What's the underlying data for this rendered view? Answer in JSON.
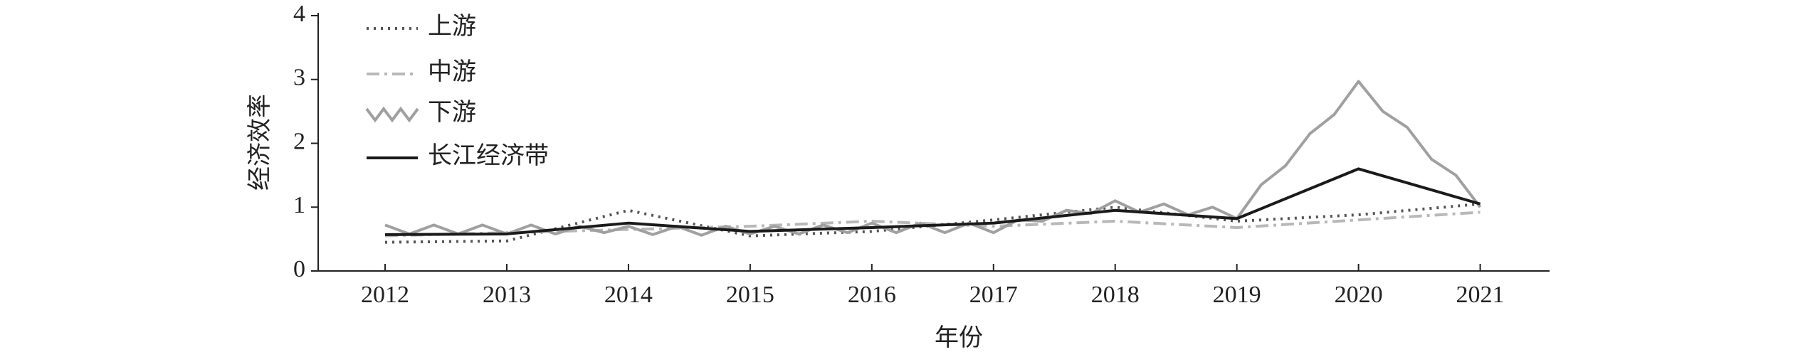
{
  "chart_data": {
    "type": "line",
    "xlabel": "年份",
    "ylabel": "经济效率",
    "xlim": [
      2011.45,
      2021.57
    ],
    "xticks": [
      2012,
      2013,
      2014,
      2015,
      2016,
      2017,
      2018,
      2019,
      2020,
      2021
    ],
    "ylim": [
      0,
      4
    ],
    "yticks": [
      0,
      1,
      2,
      3,
      4
    ],
    "legend": "upper-left",
    "series": [
      {
        "name": "上游",
        "color": "#555555",
        "style": "dotted",
        "x": [
          2012,
          2013,
          2014,
          2015,
          2016,
          2017,
          2018,
          2019,
          2020,
          2021
        ],
        "values": [
          0.45,
          0.47,
          0.95,
          0.55,
          0.62,
          0.8,
          1.0,
          0.78,
          0.88,
          1.05
        ]
      },
      {
        "name": "中游",
        "color": "#b8b8b8",
        "style": "dashdot",
        "x": [
          2012,
          2013,
          2014,
          2015,
          2016,
          2017,
          2018,
          2019,
          2020,
          2021
        ],
        "values": [
          0.55,
          0.6,
          0.65,
          0.7,
          0.78,
          0.7,
          0.78,
          0.68,
          0.8,
          0.92
        ]
      },
      {
        "name": "下游",
        "color": "#a0a0a0",
        "style": "solid",
        "x": [
          2012,
          2012.2,
          2012.4,
          2012.6,
          2012.8,
          2013,
          2013.2,
          2013.4,
          2013.6,
          2013.8,
          2014,
          2014.2,
          2014.4,
          2014.6,
          2014.8,
          2015,
          2015.2,
          2015.4,
          2015.6,
          2015.8,
          2016,
          2016.2,
          2016.4,
          2016.6,
          2016.8,
          2017,
          2017.2,
          2017.4,
          2017.6,
          2017.8,
          2018,
          2018.2,
          2018.4,
          2018.6,
          2018.8,
          2019,
          2019.2,
          2019.4,
          2019.6,
          2019.8,
          2020,
          2020.2,
          2020.4,
          2020.6,
          2020.8,
          2021
        ],
        "values": [
          0.72,
          0.58,
          0.72,
          0.58,
          0.72,
          0.58,
          0.72,
          0.58,
          0.7,
          0.6,
          0.7,
          0.57,
          0.7,
          0.56,
          0.7,
          0.58,
          0.7,
          0.58,
          0.72,
          0.6,
          0.75,
          0.6,
          0.75,
          0.6,
          0.75,
          0.6,
          0.8,
          0.78,
          0.95,
          0.9,
          1.1,
          0.92,
          1.05,
          0.88,
          1.0,
          0.82,
          1.35,
          1.65,
          2.15,
          2.45,
          2.97,
          2.5,
          2.25,
          1.75,
          1.5,
          1.0
        ]
      },
      {
        "name": "长江经济带",
        "color": "#1a1a1a",
        "style": "solid",
        "x": [
          2012,
          2013,
          2014,
          2015,
          2016,
          2017,
          2018,
          2019,
          2020,
          2021
        ],
        "values": [
          0.57,
          0.58,
          0.75,
          0.62,
          0.68,
          0.75,
          0.95,
          0.82,
          1.6,
          1.05
        ]
      }
    ]
  }
}
